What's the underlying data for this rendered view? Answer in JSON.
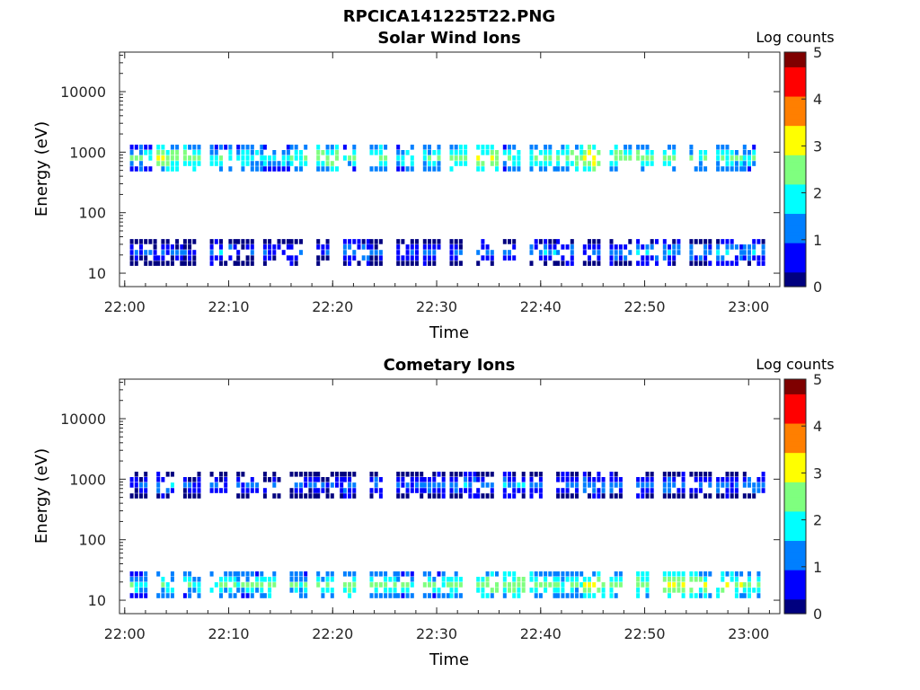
{
  "page_title": "RPCICA141225T22.PNG",
  "colormap": [
    "#00007f",
    "#0000ff",
    "#007fff",
    "#00ffff",
    "#7fff7f",
    "#ffff00",
    "#ff7f00",
    "#ff0000",
    "#7f0000"
  ],
  "chart_data": [
    {
      "type": "heatmap",
      "title": "Solar Wind Ions",
      "xlabel": "Time",
      "ylabel": "Energy (eV)",
      "y_scale": "log",
      "xlim": [
        "21:59:30",
        "23:03:00"
      ],
      "ylim": [
        6,
        45000
      ],
      "xticks": [
        "22:00",
        "22:10",
        "22:20",
        "22:30",
        "22:40",
        "22:50",
        "23:00"
      ],
      "yticks": [
        {
          "value": 10,
          "label": "10"
        },
        {
          "value": 100,
          "label": "100"
        },
        {
          "value": 1000,
          "label": "1000"
        },
        {
          "value": 10000,
          "label": "10000"
        }
      ],
      "colorbar": {
        "label": "Log counts",
        "range": [
          0,
          5
        ],
        "ticks": [
          "0",
          "1",
          "2",
          "3",
          "4",
          "5"
        ]
      },
      "bands": [
        {
          "energy_eV": 800,
          "intensity": [
            2.4,
            3.1,
            2.8,
            2.4,
            2.5,
            2.2,
            2.6,
            2.9,
            2.5,
            2.7,
            2.3,
            2.5,
            2.8,
            3.2,
            2.6,
            2.7,
            2.9,
            3.4,
            2.8,
            2.9,
            2.7,
            2.5,
            2.6,
            2.4
          ]
        },
        {
          "energy_eV": 22,
          "intensity": [
            1.2,
            1.3,
            1.0,
            1.6,
            1.1,
            1.4,
            1.5,
            1.2,
            1.7,
            1.2,
            1.4,
            1.6,
            1.3,
            1.5,
            1.5,
            1.7,
            1.6,
            1.4,
            1.6,
            1.9,
            1.8,
            1.7,
            1.9,
            1.7
          ]
        }
      ]
    },
    {
      "type": "heatmap",
      "title": "Cometary Ions",
      "xlabel": "Time",
      "ylabel": "Energy (eV)",
      "y_scale": "log",
      "xlim": [
        "21:59:30",
        "23:03:00"
      ],
      "ylim": [
        6,
        45000
      ],
      "xticks": [
        "22:00",
        "22:10",
        "22:20",
        "22:30",
        "22:40",
        "22:50",
        "23:00"
      ],
      "yticks": [
        {
          "value": 10,
          "label": "10"
        },
        {
          "value": 100,
          "label": "100"
        },
        {
          "value": 1000,
          "label": "1000"
        },
        {
          "value": 10000,
          "label": "10000"
        }
      ],
      "colorbar": {
        "label": "Log counts",
        "range": [
          0,
          5
        ],
        "ticks": [
          "0",
          "1",
          "2",
          "3",
          "4",
          "5"
        ]
      },
      "bands": [
        {
          "energy_eV": 800,
          "intensity": [
            1.3,
            1.6,
            1.2,
            1.4,
            1.5,
            1.2,
            1.4,
            1.3,
            1.6,
            1.5,
            1.4,
            1.6,
            1.7,
            1.5,
            1.8,
            1.6,
            1.5,
            1.7,
            1.6,
            1.5,
            1.6,
            1.4,
            1.5,
            1.6
          ]
        },
        {
          "energy_eV": 18,
          "intensity": [
            2.3,
            2.6,
            2.2,
            2.7,
            2.4,
            2.8,
            2.5,
            2.6,
            2.9,
            2.7,
            2.4,
            2.6,
            2.8,
            2.9,
            3.0,
            2.7,
            2.6,
            3.1,
            2.8,
            2.9,
            3.2,
            2.9,
            3.0,
            2.8
          ]
        }
      ]
    }
  ]
}
